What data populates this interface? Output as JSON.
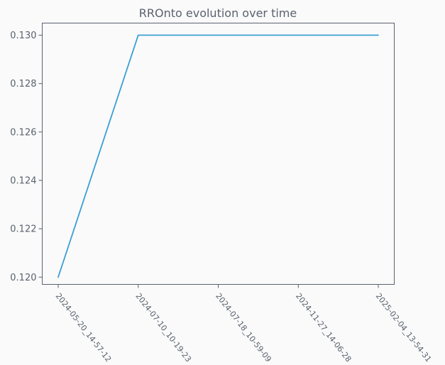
{
  "chart_data": {
    "type": "line",
    "title": "RROnto evolution over time",
    "xlabel": "",
    "ylabel": "",
    "categories": [
      "2024-05-20_14-57-12",
      "2024-07-10_10-19-23",
      "2024-07-18_10-59-09",
      "2024-11-27_14-06-28",
      "2025-02-04_13-54-31"
    ],
    "series": [
      {
        "values": [
          0.12,
          0.13,
          0.13,
          0.13,
          0.13
        ],
        "color": "#3a9fd6"
      }
    ],
    "ylim": [
      0.1197,
      0.1305
    ],
    "yticks": [
      "0.120",
      "0.122",
      "0.124",
      "0.126",
      "0.128",
      "0.130"
    ],
    "grid": false,
    "legend": "none"
  }
}
